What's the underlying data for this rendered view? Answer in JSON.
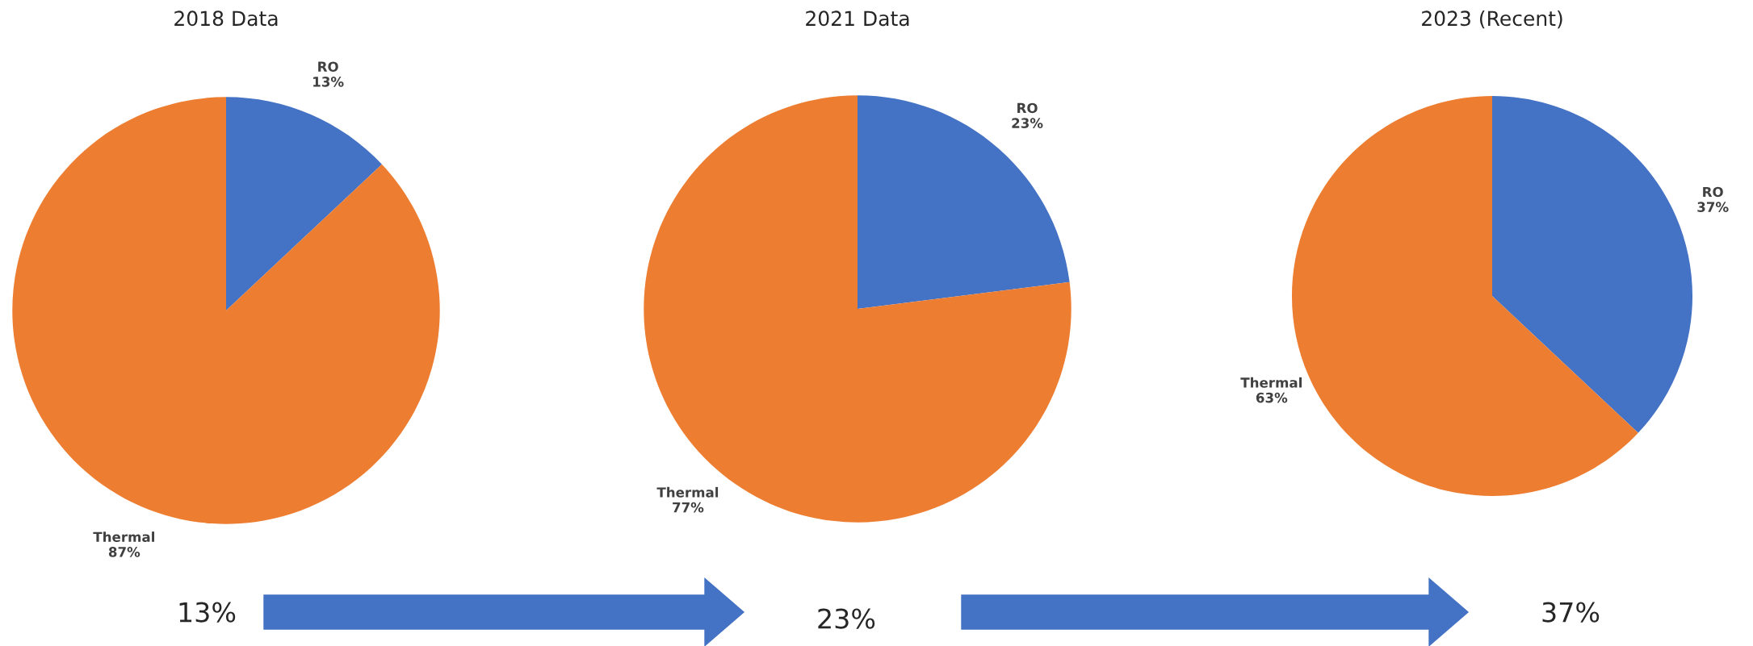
{
  "chart_data": [
    {
      "type": "pie",
      "title": "2018 Data",
      "categories": [
        "RO",
        "Thermal"
      ],
      "values": [
        13,
        87
      ],
      "colors": [
        "#4472c4",
        "#ed7d31"
      ],
      "value_labels": [
        "13%",
        "87%"
      ],
      "annotations": [
        "13%"
      ]
    },
    {
      "type": "pie",
      "title": "2021 Data",
      "categories": [
        "RO",
        "Thermal"
      ],
      "values": [
        23,
        77
      ],
      "colors": [
        "#4472c4",
        "#ed7d31"
      ],
      "value_labels": [
        "23%",
        "77%"
      ],
      "annotations": [
        "23%"
      ]
    },
    {
      "type": "pie",
      "title": "2023 (Recent)",
      "categories": [
        "RO",
        "Thermal"
      ],
      "values": [
        37,
        63
      ],
      "colors": [
        "#4472c4",
        "#ed7d31"
      ],
      "value_labels": [
        "37%",
        "63%"
      ],
      "annotations": [
        "37%"
      ]
    }
  ]
}
